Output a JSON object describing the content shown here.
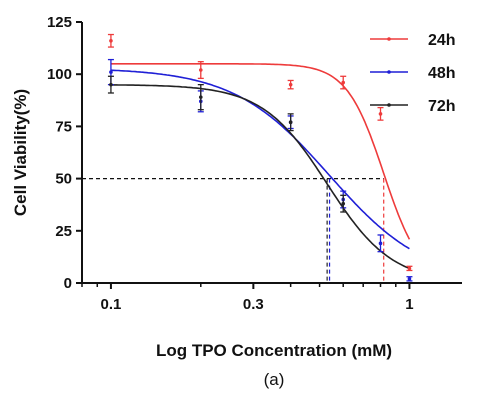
{
  "chart_data": {
    "type": "scatter",
    "title": "",
    "xlabel": "Log TPO Concentration (mM)",
    "ylabel": "Cell Viability(%)",
    "xscale": "log",
    "xlim": [
      0.08,
      1.5
    ],
    "ylim": [
      0,
      125
    ],
    "x_ticks": [
      0.1,
      0.3,
      1
    ],
    "x_tick_labels": [
      "0.1",
      "0.3",
      "1"
    ],
    "y_ticks": [
      0,
      25,
      50,
      75,
      100,
      125
    ],
    "y_tick_labels": [
      "0",
      "25",
      "50",
      "75",
      "100",
      "125"
    ],
    "legend_position": "top-right",
    "reference_level": 50,
    "series": [
      {
        "name": "24h",
        "color": "#ee3b3b",
        "x": [
          0.1,
          0.2,
          0.4,
          0.6,
          0.8,
          1.0
        ],
        "y": [
          116,
          102,
          95,
          96,
          81,
          7
        ],
        "yerr": [
          3,
          4,
          2,
          3,
          3,
          1
        ],
        "fit_top": 105,
        "fit_ic50": 0.82,
        "fit_hill": 7,
        "ic50_drop": 0.82
      },
      {
        "name": "48h",
        "color": "#1f1fd6",
        "x": [
          0.1,
          0.2,
          0.4,
          0.6,
          0.8,
          1.0
        ],
        "y": [
          101,
          87,
          77,
          40,
          19,
          2
        ],
        "yerr": [
          6,
          5,
          3,
          4,
          4,
          1
        ],
        "fit_top": 103,
        "fit_ic50": 0.54,
        "fit_hill": 2.7,
        "ic50_drop": 0.54
      },
      {
        "name": "72h",
        "color": "#222222",
        "x": [
          0.1,
          0.2,
          0.4,
          0.6
        ],
        "y": [
          95,
          89,
          77,
          38
        ],
        "yerr": [
          4,
          6,
          4,
          4
        ],
        "fit_top": 95,
        "fit_ic50": 0.53,
        "fit_hill": 4,
        "ic50_drop": 0.53
      }
    ]
  },
  "caption": "(a)"
}
